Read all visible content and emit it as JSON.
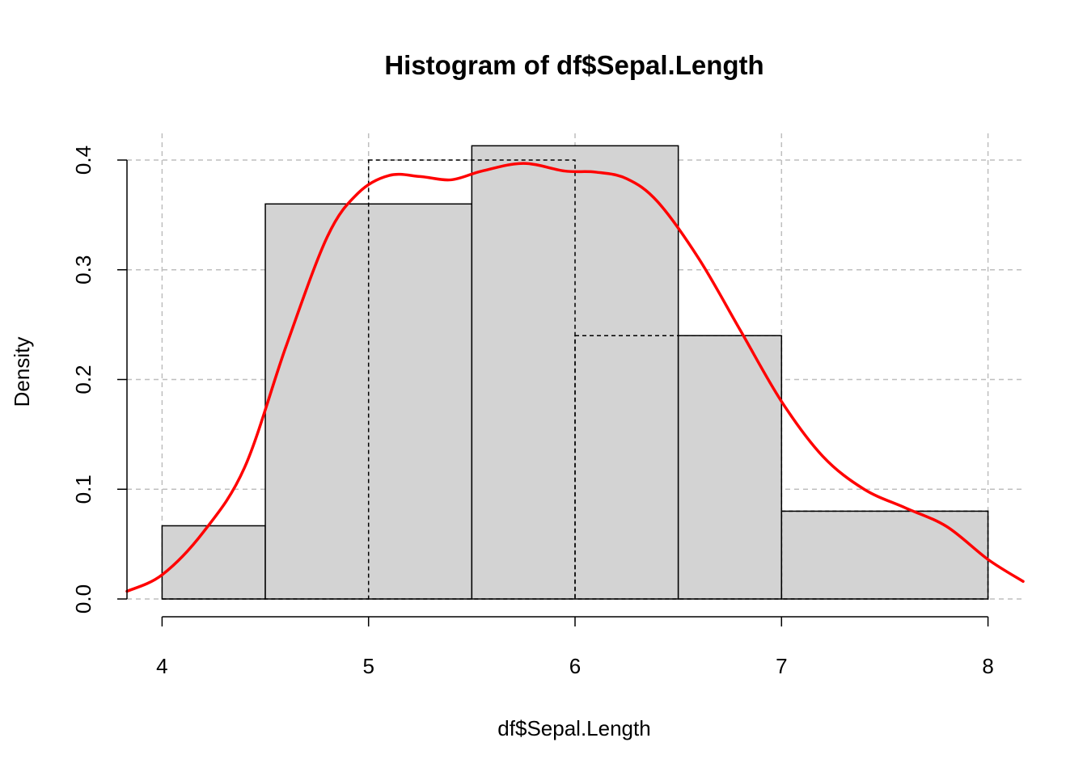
{
  "chart_data": {
    "type": "bar",
    "subtype": "histogram-with-density",
    "title": "Histogram of df$Sepal.Length",
    "xlabel": "df$Sepal.Length",
    "ylabel": "Density",
    "xlim": [
      3.83,
      8.17
    ],
    "ylim": [
      0,
      0.4
    ],
    "x_ticks": [
      4,
      5,
      6,
      7,
      8
    ],
    "y_ticks": [
      0.0,
      0.1,
      0.2,
      0.3,
      0.4
    ],
    "x_tick_labels": [
      "4",
      "5",
      "6",
      "7",
      "8"
    ],
    "y_tick_labels": [
      "0.0",
      "0.1",
      "0.2",
      "0.3",
      "0.4"
    ],
    "grid": true,
    "bins": [
      {
        "start": 4.0,
        "end": 4.5,
        "density": 0.0667
      },
      {
        "start": 4.5,
        "end": 5.5,
        "density": 0.36
      },
      {
        "start": 5.5,
        "end": 6.5,
        "density": 0.413
      },
      {
        "start": 6.5,
        "end": 7.0,
        "density": 0.24
      },
      {
        "start": 7.0,
        "end": 8.0,
        "density": 0.08
      }
    ],
    "dashed_overlay_bins": [
      {
        "start": 5.0,
        "end": 6.0,
        "density": 0.4
      },
      {
        "start": 6.0,
        "end": 7.0,
        "density": 0.24
      },
      {
        "start": 7.0,
        "end": 8.0,
        "density": 0.08
      }
    ],
    "density_curve": {
      "color": "#ff0000",
      "x": [
        3.83,
        4.0,
        4.2,
        4.4,
        4.6,
        4.8,
        4.95,
        5.1,
        5.25,
        5.4,
        5.55,
        5.75,
        5.95,
        6.1,
        6.25,
        6.4,
        6.6,
        6.8,
        7.0,
        7.2,
        7.4,
        7.6,
        7.8,
        8.0,
        8.17
      ],
      "y": [
        0.007,
        0.022,
        0.061,
        0.12,
        0.23,
        0.33,
        0.37,
        0.386,
        0.385,
        0.382,
        0.39,
        0.397,
        0.39,
        0.389,
        0.383,
        0.362,
        0.31,
        0.245,
        0.18,
        0.13,
        0.1,
        0.083,
        0.066,
        0.036,
        0.016
      ]
    },
    "colors": {
      "bar_fill": "#d3d3d3",
      "bar_stroke": "#000000",
      "grid": "#bebebe",
      "curve": "#ff0000"
    }
  }
}
